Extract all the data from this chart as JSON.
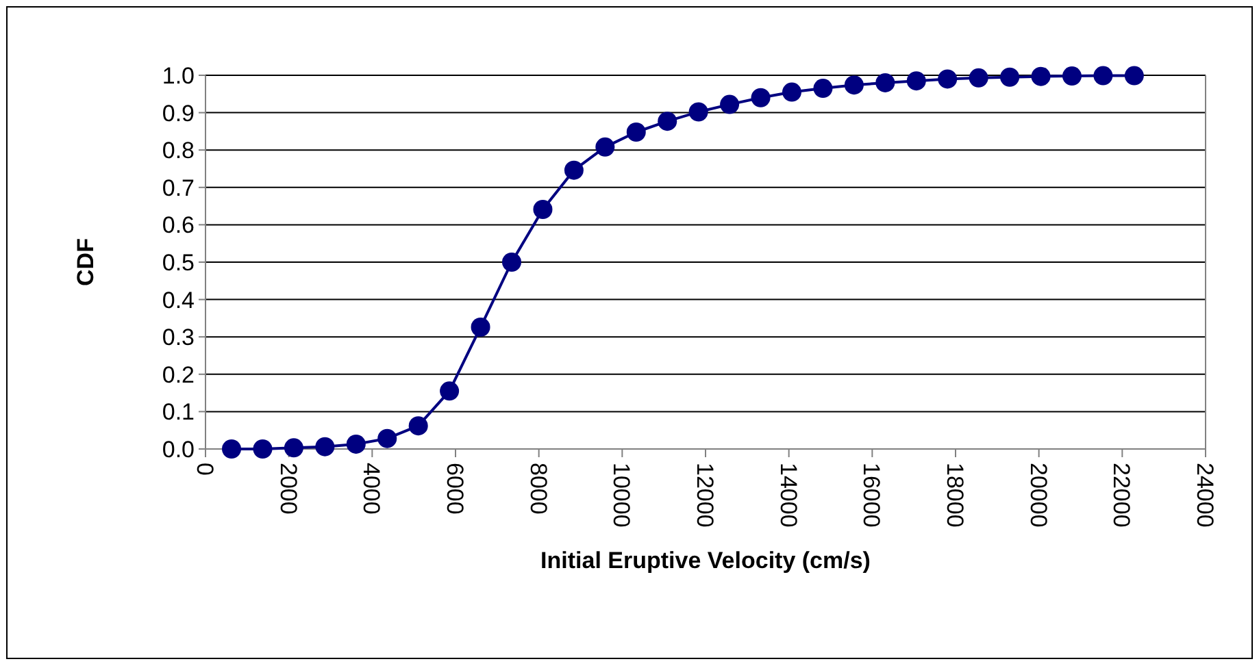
{
  "chart_data": {
    "type": "line",
    "xlabel": "Initial Eruptive Velocity (cm/s)",
    "ylabel": "CDF",
    "x": [
      625,
      1372,
      2119,
      2866,
      3613,
      4360,
      5107,
      5854,
      6601,
      7348,
      8095,
      8842,
      9589,
      10336,
      11083,
      11830,
      12577,
      13324,
      14071,
      14818,
      15565,
      16312,
      17059,
      17806,
      18553,
      19300,
      20047,
      20794,
      21541,
      22288
    ],
    "series": [
      {
        "color": "#000080",
        "values": [
          0,
          0,
          0.003,
          0.006,
          0.013,
          0.028,
          0.062,
          0.155,
          0.326,
          0.5,
          0.641,
          0.746,
          0.808,
          0.848,
          0.877,
          0.902,
          0.922,
          0.94,
          0.955,
          0.965,
          0.974,
          0.98,
          0.985,
          0.99,
          0.993,
          0.995,
          0.997,
          0.998,
          0.999,
          0.999
        ]
      }
    ],
    "xlim": [
      0,
      24000
    ],
    "xticks": [
      0,
      2000,
      4000,
      6000,
      8000,
      10000,
      12000,
      14000,
      16000,
      18000,
      20000,
      22000,
      24000
    ],
    "ylim": [
      0,
      1
    ],
    "yticks": [
      {
        "value": 0,
        "label": "0.0"
      },
      {
        "value": 0.1,
        "label": "0.1"
      },
      {
        "value": 0.2,
        "label": "0.2"
      },
      {
        "value": 0.3,
        "label": "0.3"
      },
      {
        "value": 0.4,
        "label": "0.4"
      },
      {
        "value": 0.5,
        "label": "0.5"
      },
      {
        "value": 0.6,
        "label": "0.6"
      },
      {
        "value": 0.7,
        "label": "0.7"
      },
      {
        "value": 0.8,
        "label": "0.8"
      },
      {
        "value": 0.9,
        "label": "0.9"
      },
      {
        "value": 1,
        "label": "1.0"
      }
    ],
    "grid": "y",
    "marker": "circle",
    "line_style": "solid"
  }
}
